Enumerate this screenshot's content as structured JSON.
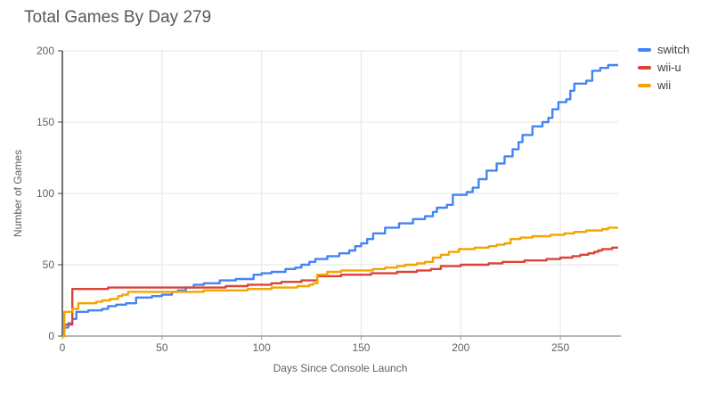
{
  "title": "Total Games By Day 279",
  "colors": {
    "background": "#ffffff",
    "title_text": "#575757",
    "gridline": "#e4e4e4",
    "y_axis_spine": "#424242",
    "x_axis_baseline": "#b7b7b7",
    "tick_label": "#616161",
    "axis_title": "#616161",
    "legend_text": "#3c4043",
    "switch": "#4285F4",
    "wii_u": "#DB4437",
    "wii": "#F4A400"
  },
  "legend": {
    "position": "right",
    "items": [
      {
        "label": "switch",
        "color": "#4285F4"
      },
      {
        "label": "wii-u",
        "color": "#DB4437"
      },
      {
        "label": "wii",
        "color": "#F4A400"
      }
    ]
  },
  "chart_data": {
    "type": "line",
    "title": "Total Games By Day 279",
    "xlabel": "Days Since Console Launch",
    "ylabel": "Number of Games",
    "xlim": [
      0,
      279
    ],
    "ylim": [
      0,
      200
    ],
    "x_ticks": [
      0,
      50,
      100,
      150,
      200,
      250
    ],
    "y_ticks": [
      0,
      50,
      100,
      150,
      200
    ],
    "grid": true,
    "legend_position": "right",
    "interpolation": "step-after",
    "series": [
      {
        "name": "switch",
        "color": "#4285F4",
        "points": [
          [
            0,
            0
          ],
          [
            1,
            6
          ],
          [
            3,
            9
          ],
          [
            5,
            12
          ],
          [
            7,
            17
          ],
          [
            13,
            18
          ],
          [
            20,
            19
          ],
          [
            23,
            21
          ],
          [
            27,
            22
          ],
          [
            32,
            23
          ],
          [
            37,
            27
          ],
          [
            45,
            28
          ],
          [
            50,
            29
          ],
          [
            55,
            31
          ],
          [
            58,
            32
          ],
          [
            62,
            34
          ],
          [
            66,
            36
          ],
          [
            71,
            37
          ],
          [
            79,
            39
          ],
          [
            87,
            40
          ],
          [
            96,
            43
          ],
          [
            100,
            44
          ],
          [
            105,
            45
          ],
          [
            112,
            47
          ],
          [
            117,
            48
          ],
          [
            120,
            50
          ],
          [
            124,
            52
          ],
          [
            127,
            54
          ],
          [
            133,
            56
          ],
          [
            139,
            58
          ],
          [
            144,
            60
          ],
          [
            147,
            63
          ],
          [
            150,
            65
          ],
          [
            153,
            68
          ],
          [
            156,
            72
          ],
          [
            162,
            76
          ],
          [
            169,
            79
          ],
          [
            176,
            82
          ],
          [
            182,
            84
          ],
          [
            186,
            87
          ],
          [
            188,
            90
          ],
          [
            193,
            92
          ],
          [
            196,
            99
          ],
          [
            203,
            101
          ],
          [
            206,
            104
          ],
          [
            209,
            110
          ],
          [
            213,
            116
          ],
          [
            218,
            121
          ],
          [
            222,
            126
          ],
          [
            226,
            131
          ],
          [
            229,
            136
          ],
          [
            231,
            141
          ],
          [
            236,
            147
          ],
          [
            241,
            150
          ],
          [
            244,
            153
          ],
          [
            246,
            159
          ],
          [
            249,
            164
          ],
          [
            253,
            166
          ],
          [
            255,
            172
          ],
          [
            257,
            177
          ],
          [
            263,
            179
          ],
          [
            266,
            186
          ],
          [
            270,
            188
          ],
          [
            274,
            190
          ],
          [
            279,
            190
          ]
        ]
      },
      {
        "name": "wii-u",
        "color": "#DB4437",
        "points": [
          [
            0,
            0
          ],
          [
            1,
            8
          ],
          [
            5,
            33
          ],
          [
            23,
            34
          ],
          [
            70,
            34
          ],
          [
            82,
            35
          ],
          [
            93,
            36
          ],
          [
            105,
            37
          ],
          [
            110,
            38
          ],
          [
            120,
            39
          ],
          [
            128,
            42
          ],
          [
            140,
            43
          ],
          [
            155,
            44
          ],
          [
            168,
            45
          ],
          [
            178,
            46
          ],
          [
            185,
            47
          ],
          [
            190,
            49
          ],
          [
            200,
            50
          ],
          [
            214,
            51
          ],
          [
            221,
            52
          ],
          [
            232,
            53
          ],
          [
            243,
            54
          ],
          [
            250,
            55
          ],
          [
            256,
            56
          ],
          [
            260,
            57
          ],
          [
            264,
            58
          ],
          [
            267,
            59
          ],
          [
            269,
            60
          ],
          [
            271,
            61
          ],
          [
            276,
            62
          ],
          [
            279,
            62
          ]
        ]
      },
      {
        "name": "wii",
        "color": "#F4A400",
        "points": [
          [
            0,
            0
          ],
          [
            1,
            17
          ],
          [
            5,
            19
          ],
          [
            8,
            23
          ],
          [
            17,
            24
          ],
          [
            20,
            25
          ],
          [
            24,
            26
          ],
          [
            28,
            28
          ],
          [
            30,
            29
          ],
          [
            33,
            31
          ],
          [
            60,
            31
          ],
          [
            71,
            32
          ],
          [
            93,
            33
          ],
          [
            105,
            34
          ],
          [
            118,
            35
          ],
          [
            124,
            36
          ],
          [
            126,
            37
          ],
          [
            128,
            43
          ],
          [
            133,
            45
          ],
          [
            140,
            46
          ],
          [
            150,
            46
          ],
          [
            156,
            47
          ],
          [
            162,
            48
          ],
          [
            168,
            49
          ],
          [
            172,
            50
          ],
          [
            178,
            51
          ],
          [
            182,
            52
          ],
          [
            186,
            55
          ],
          [
            190,
            57
          ],
          [
            194,
            59
          ],
          [
            199,
            61
          ],
          [
            207,
            62
          ],
          [
            214,
            63
          ],
          [
            218,
            64
          ],
          [
            222,
            65
          ],
          [
            225,
            68
          ],
          [
            230,
            69
          ],
          [
            236,
            70
          ],
          [
            245,
            71
          ],
          [
            252,
            72
          ],
          [
            257,
            73
          ],
          [
            263,
            74
          ],
          [
            268,
            74
          ],
          [
            271,
            75
          ],
          [
            274,
            76
          ],
          [
            279,
            76
          ]
        ]
      }
    ]
  }
}
